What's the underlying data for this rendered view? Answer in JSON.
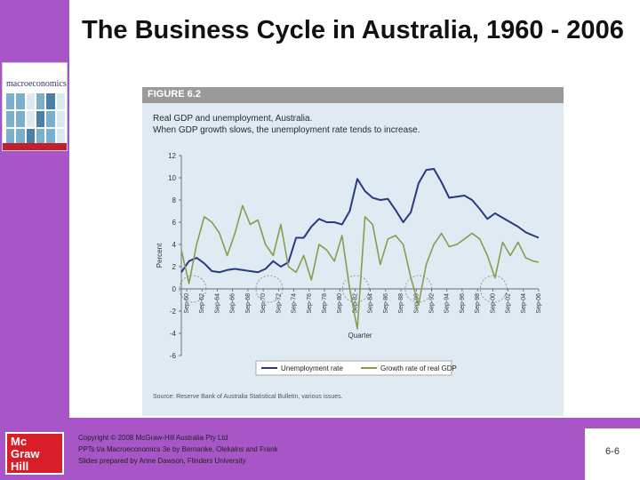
{
  "slide": {
    "title": "The Business Cycle in Australia, 1960 - 2006",
    "slide_number": "6-6"
  },
  "book": {
    "cover_title": "macroeconomics"
  },
  "logo": {
    "line1": "Mc",
    "line2": "Graw",
    "line3": "Hill"
  },
  "figure": {
    "label": "FIGURE 6.2",
    "subtitle1": "Real GDP and unemployment, Australia.",
    "subtitle2": "When GDP growth slows, the unemployment rate tends to increase.",
    "source": "Source: Reserve Bank of Australia Statistical Bulletin, various issues."
  },
  "footer": {
    "line1": "Copyright © 2008 McGraw-Hill Australia Pty Ltd",
    "line2": "PPTs t/a Macroeconomics 3e by Bernanke, Olekalns and Frank",
    "line3": "Slides prepared by Anne Dawson, Flinders University"
  },
  "colors": {
    "unemployment": "#2b3a80",
    "gdp_growth": "#8a9a50",
    "figure_bg": "#dfeaf3",
    "accent": "#a855c8"
  },
  "chart_data": {
    "type": "line",
    "ylabel": "Percent",
    "xlabel": "Quarter",
    "ylim": [
      -6,
      12
    ],
    "yticks": [
      -6,
      -4,
      -2,
      0,
      2,
      4,
      6,
      8,
      10,
      12
    ],
    "xlim": [
      1960,
      2006.7
    ],
    "xticks": [
      {
        "label": "Sep-60",
        "x": 1960.7
      },
      {
        "label": "Sep-62",
        "x": 1962.7
      },
      {
        "label": "Sep-64",
        "x": 1964.7
      },
      {
        "label": "Sep-66",
        "x": 1966.7
      },
      {
        "label": "Sep-68",
        "x": 1968.7
      },
      {
        "label": "Sep-70",
        "x": 1970.7
      },
      {
        "label": "Sep-72",
        "x": 1972.7
      },
      {
        "label": "Sep-74",
        "x": 1974.7
      },
      {
        "label": "Sep-76",
        "x": 1976.7
      },
      {
        "label": "Sep-78",
        "x": 1978.7
      },
      {
        "label": "Sep-80",
        "x": 1980.7
      },
      {
        "label": "Sep-82",
        "x": 1982.7
      },
      {
        "label": "Sep-84",
        "x": 1984.7
      },
      {
        "label": "Sep-86",
        "x": 1986.7
      },
      {
        "label": "Sep-88",
        "x": 1988.7
      },
      {
        "label": "Sep-90",
        "x": 1990.7
      },
      {
        "label": "Sep-92",
        "x": 1992.7
      },
      {
        "label": "Sep-94",
        "x": 1994.7
      },
      {
        "label": "Sep-96",
        "x": 1996.7
      },
      {
        "label": "Sep-98",
        "x": 1998.7
      },
      {
        "label": "Sep-00",
        "x": 2000.7
      },
      {
        "label": "Sep-02",
        "x": 2002.7
      },
      {
        "label": "Sep-04",
        "x": 2004.7
      },
      {
        "label": "Sep-06",
        "x": 2006.7
      }
    ],
    "legend": {
      "placement": "bottom"
    },
    "series": [
      {
        "name": "Unemployment rate",
        "points": [
          [
            1960,
            1.5
          ],
          [
            1961,
            2.5
          ],
          [
            1962,
            2.8
          ],
          [
            1963,
            2.3
          ],
          [
            1964,
            1.6
          ],
          [
            1965,
            1.5
          ],
          [
            1966,
            1.7
          ],
          [
            1967,
            1.8
          ],
          [
            1968,
            1.7
          ],
          [
            1969,
            1.6
          ],
          [
            1970,
            1.5
          ],
          [
            1971,
            1.8
          ],
          [
            1972,
            2.5
          ],
          [
            1973,
            2.0
          ],
          [
            1974,
            2.4
          ],
          [
            1975,
            4.6
          ],
          [
            1976,
            4.6
          ],
          [
            1977,
            5.6
          ],
          [
            1978,
            6.3
          ],
          [
            1979,
            6.0
          ],
          [
            1980,
            6.0
          ],
          [
            1981,
            5.8
          ],
          [
            1982,
            7.0
          ],
          [
            1983,
            9.9
          ],
          [
            1984,
            8.8
          ],
          [
            1985,
            8.2
          ],
          [
            1986,
            8.0
          ],
          [
            1987,
            8.1
          ],
          [
            1988,
            7.1
          ],
          [
            1989,
            6.0
          ],
          [
            1990,
            6.9
          ],
          [
            1991,
            9.5
          ],
          [
            1992,
            10.7
          ],
          [
            1993,
            10.8
          ],
          [
            1994,
            9.6
          ],
          [
            1995,
            8.2
          ],
          [
            1996,
            8.3
          ],
          [
            1997,
            8.4
          ],
          [
            1998,
            8.0
          ],
          [
            1999,
            7.2
          ],
          [
            2000,
            6.3
          ],
          [
            2001,
            6.8
          ],
          [
            2002,
            6.4
          ],
          [
            2003,
            6.0
          ],
          [
            2004,
            5.6
          ],
          [
            2005,
            5.1
          ],
          [
            2006,
            4.8
          ],
          [
            2006.7,
            4.6
          ]
        ]
      },
      {
        "name": "Growth rate of real GDP",
        "points": [
          [
            1960,
            3.5
          ],
          [
            1961,
            0.5
          ],
          [
            1962,
            4.0
          ],
          [
            1963,
            6.5
          ],
          [
            1964,
            6.0
          ],
          [
            1965,
            5.0
          ],
          [
            1966,
            3.0
          ],
          [
            1967,
            5.0
          ],
          [
            1968,
            7.5
          ],
          [
            1969,
            5.8
          ],
          [
            1970,
            6.2
          ],
          [
            1971,
            4.0
          ],
          [
            1972,
            3.0
          ],
          [
            1973,
            5.8
          ],
          [
            1974,
            2.0
          ],
          [
            1975,
            1.5
          ],
          [
            1976,
            3.0
          ],
          [
            1977,
            0.8
          ],
          [
            1978,
            4.0
          ],
          [
            1979,
            3.5
          ],
          [
            1980,
            2.5
          ],
          [
            1981,
            4.8
          ],
          [
            1982,
            0.0
          ],
          [
            1983,
            -3.6
          ],
          [
            1984,
            6.5
          ],
          [
            1985,
            5.8
          ],
          [
            1986,
            2.2
          ],
          [
            1987,
            4.5
          ],
          [
            1988,
            4.8
          ],
          [
            1989,
            4.0
          ],
          [
            1990,
            1.0
          ],
          [
            1991,
            -1.4
          ],
          [
            1992,
            2.2
          ],
          [
            1993,
            4.0
          ],
          [
            1994,
            5.0
          ],
          [
            1995,
            3.8
          ],
          [
            1996,
            4.0
          ],
          [
            1997,
            4.5
          ],
          [
            1998,
            5.0
          ],
          [
            1999,
            4.5
          ],
          [
            2000,
            3.0
          ],
          [
            2001,
            1.0
          ],
          [
            2002,
            4.2
          ],
          [
            2003,
            3.0
          ],
          [
            2004,
            4.2
          ],
          [
            2005,
            2.8
          ],
          [
            2006,
            2.5
          ],
          [
            2006.7,
            2.4
          ]
        ]
      }
    ],
    "recession_markers": [
      1961.5,
      1971.5,
      1982.8,
      1991.0,
      2000.8
    ]
  }
}
